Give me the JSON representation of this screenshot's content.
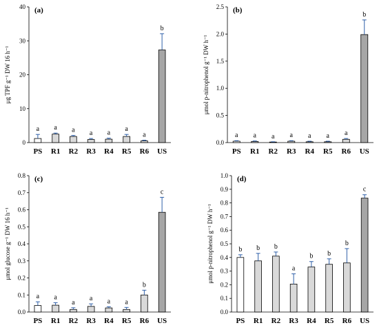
{
  "chart_data": [
    {
      "type": "bar",
      "panel_label": "(a)",
      "categories": [
        "PS",
        "R1",
        "R2",
        "R3",
        "R4",
        "R5",
        "R6",
        "US"
      ],
      "values": [
        1.2,
        2.5,
        1.8,
        0.9,
        1.0,
        1.8,
        0.5,
        27.3
      ],
      "errors": [
        1.2,
        0.3,
        0.3,
        0.3,
        0.3,
        0.6,
        0.2,
        4.8
      ],
      "letters": [
        "a",
        "a",
        "a",
        "a",
        "a",
        "a",
        "a",
        "b"
      ],
      "ylabel": "μg TPF g⁻¹ DW 16 h⁻¹",
      "ylim": [
        0,
        40
      ],
      "yticks": [
        "0",
        "10",
        "20",
        "30",
        "40"
      ],
      "bar_colors": [
        "#ffffff",
        "#d9d9d9",
        "#d9d9d9",
        "#d9d9d9",
        "#d9d9d9",
        "#d9d9d9",
        "#d9d9d9",
        "#a6a6a6"
      ]
    },
    {
      "type": "bar",
      "panel_label": "(b)",
      "categories": [
        "PS",
        "R1",
        "R2",
        "R3",
        "R4",
        "R5",
        "R6",
        "US"
      ],
      "values": [
        0.025,
        0.02,
        0.01,
        0.025,
        0.015,
        0.015,
        0.06,
        1.99
      ],
      "errors": [
        0.01,
        0.01,
        0.005,
        0.01,
        0.01,
        0.01,
        0.015,
        0.27
      ],
      "letters": [
        "a",
        "a",
        "a",
        "a",
        "a",
        "a",
        "a",
        "b"
      ],
      "ylabel": "μmol p-nitrophenol g⁻¹ DW h⁻¹",
      "ylim": [
        0,
        2.5
      ],
      "yticks": [
        "0.0",
        "0.5",
        "1.0",
        "1.5",
        "2.0",
        "2.5"
      ],
      "bar_colors": [
        "#ffffff",
        "#d9d9d9",
        "#d9d9d9",
        "#d9d9d9",
        "#d9d9d9",
        "#d9d9d9",
        "#d9d9d9",
        "#a6a6a6"
      ]
    },
    {
      "type": "bar",
      "panel_label": "(c)",
      "categories": [
        "PS",
        "R1",
        "R2",
        "R3",
        "R4",
        "R5",
        "R6",
        "US"
      ],
      "values": [
        0.038,
        0.04,
        0.015,
        0.033,
        0.024,
        0.015,
        0.1,
        0.585
      ],
      "errors": [
        0.022,
        0.015,
        0.01,
        0.015,
        0.007,
        0.012,
        0.028,
        0.088
      ],
      "letters": [
        "a",
        "a",
        "a",
        "a",
        "a",
        "a",
        "b",
        "c"
      ],
      "ylabel": "μmol glucose g⁻¹ DW 16 h⁻¹",
      "ylim": [
        0,
        0.8
      ],
      "yticks": [
        "0.0",
        "0.1",
        "0.2",
        "0.3",
        "0.4",
        "0.5",
        "0.6",
        "0.7",
        "0.8"
      ],
      "bar_colors": [
        "#ffffff",
        "#d9d9d9",
        "#d9d9d9",
        "#d9d9d9",
        "#d9d9d9",
        "#d9d9d9",
        "#d9d9d9",
        "#a6a6a6"
      ]
    },
    {
      "type": "bar",
      "panel_label": "(d)",
      "categories": [
        "PS",
        "R1",
        "R2",
        "R3",
        "R4",
        "R5",
        "R6",
        "US"
      ],
      "values": [
        0.4,
        0.375,
        0.41,
        0.205,
        0.33,
        0.35,
        0.36,
        0.835
      ],
      "errors": [
        0.02,
        0.055,
        0.03,
        0.075,
        0.04,
        0.04,
        0.105,
        0.025
      ],
      "letters": [
        "b",
        "b",
        "b",
        "a",
        "b",
        "b",
        "b",
        "c"
      ],
      "ylabel": "μmol p-nitrophenol g⁻¹ DW h⁻¹",
      "ylim": [
        0,
        1.0
      ],
      "yticks": [
        "0.0",
        "0.1",
        "0.2",
        "0.3",
        "0.4",
        "0.5",
        "0.6",
        "0.7",
        "0.8",
        "0.9",
        "1.0"
      ],
      "bar_colors": [
        "#ffffff",
        "#d9d9d9",
        "#d9d9d9",
        "#d9d9d9",
        "#d9d9d9",
        "#d9d9d9",
        "#d9d9d9",
        "#a6a6a6"
      ]
    }
  ],
  "colors": {
    "axis": "#000000",
    "bar_border": "#000000",
    "error_bar": "#2e5fa8"
  }
}
